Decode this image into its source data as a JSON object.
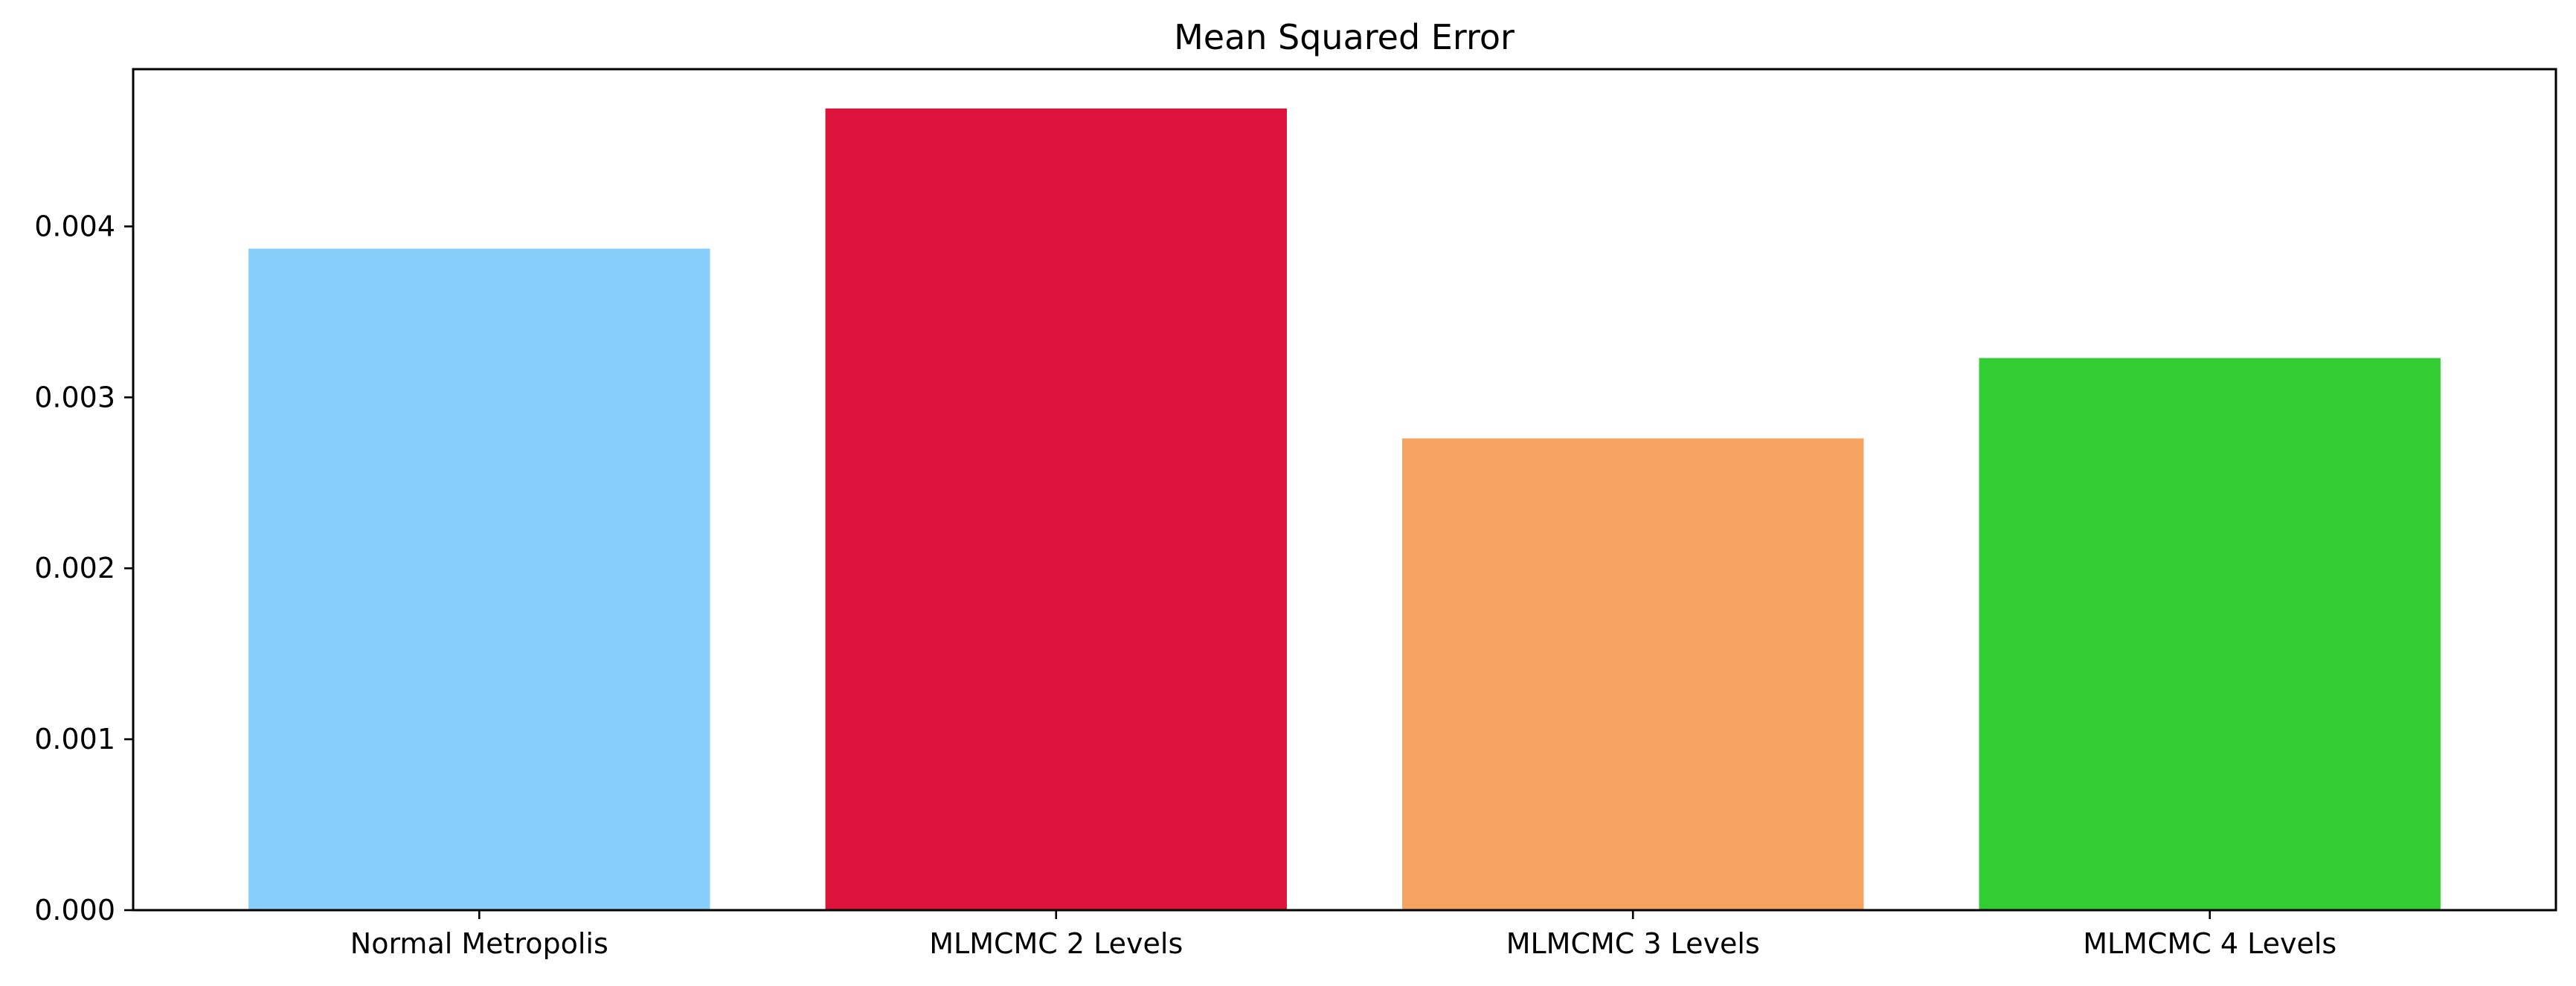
{
  "chart_data": {
    "type": "bar",
    "title": "Mean Squared Error",
    "xlabel": "",
    "ylabel": "",
    "categories": [
      "Normal Metropolis",
      "MLMCMC 2 Levels",
      "MLMCMC 3 Levels",
      "MLMCMC 4 Levels"
    ],
    "values": [
      0.00387,
      0.00469,
      0.00276,
      0.00323
    ],
    "colors": [
      "#87CEFA",
      "#DC143C",
      "#F4A460",
      "#32CD32"
    ],
    "ylim": [
      0,
      0.00492
    ],
    "yticks": [
      0.0,
      0.001,
      0.002,
      0.003,
      0.004
    ],
    "ytick_labels": [
      "0.000",
      "0.001",
      "0.002",
      "0.003",
      "0.004"
    ],
    "grid": false,
    "legend": "none"
  }
}
